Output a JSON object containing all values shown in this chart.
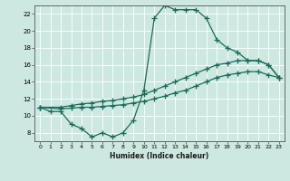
{
  "xlabel": "Humidex (Indice chaleur)",
  "background_color": "#cce8e0",
  "line_color": "#1a6b5a",
  "xlim": [
    -0.5,
    23.5
  ],
  "ylim": [
    7,
    23
  ],
  "yticks": [
    8,
    10,
    12,
    14,
    16,
    18,
    20,
    22
  ],
  "xticks": [
    0,
    1,
    2,
    3,
    4,
    5,
    6,
    7,
    8,
    9,
    10,
    11,
    12,
    13,
    14,
    15,
    16,
    17,
    18,
    19,
    20,
    21,
    22,
    23
  ],
  "curve1_x": [
    0,
    1,
    2,
    3,
    4,
    5,
    6,
    7,
    8,
    9,
    10,
    11,
    12,
    13,
    14,
    15,
    16,
    17,
    18,
    19,
    20,
    21,
    22,
    23
  ],
  "curve1_y": [
    11,
    10.5,
    10.5,
    9,
    8.5,
    7.5,
    8,
    7.5,
    8,
    9.5,
    13,
    21.5,
    23,
    22.5,
    22.5,
    22.5,
    21.5,
    19,
    18,
    17.5,
    16.5,
    16.5,
    16,
    14.5
  ],
  "curve2_x": [
    0,
    2,
    3,
    4,
    5,
    6,
    7,
    8,
    9,
    10,
    11,
    12,
    13,
    14,
    15,
    16,
    17,
    18,
    19,
    20,
    21,
    22,
    23
  ],
  "curve2_y": [
    11,
    11.0,
    11.2,
    11.4,
    11.5,
    11.7,
    11.8,
    12.0,
    12.2,
    12.5,
    13.0,
    13.5,
    14.0,
    14.5,
    15.0,
    15.5,
    16.0,
    16.2,
    16.5,
    16.5,
    16.5,
    16.0,
    14.5
  ],
  "curve3_x": [
    0,
    2,
    3,
    4,
    5,
    6,
    7,
    8,
    9,
    10,
    11,
    12,
    13,
    14,
    15,
    16,
    17,
    18,
    19,
    20,
    21,
    22,
    23
  ],
  "curve3_y": [
    11,
    10.8,
    10.9,
    11.0,
    11.0,
    11.1,
    11.2,
    11.3,
    11.5,
    11.7,
    12.0,
    12.3,
    12.7,
    13.0,
    13.5,
    14.0,
    14.5,
    14.8,
    15.0,
    15.2,
    15.2,
    14.8,
    14.5
  ]
}
